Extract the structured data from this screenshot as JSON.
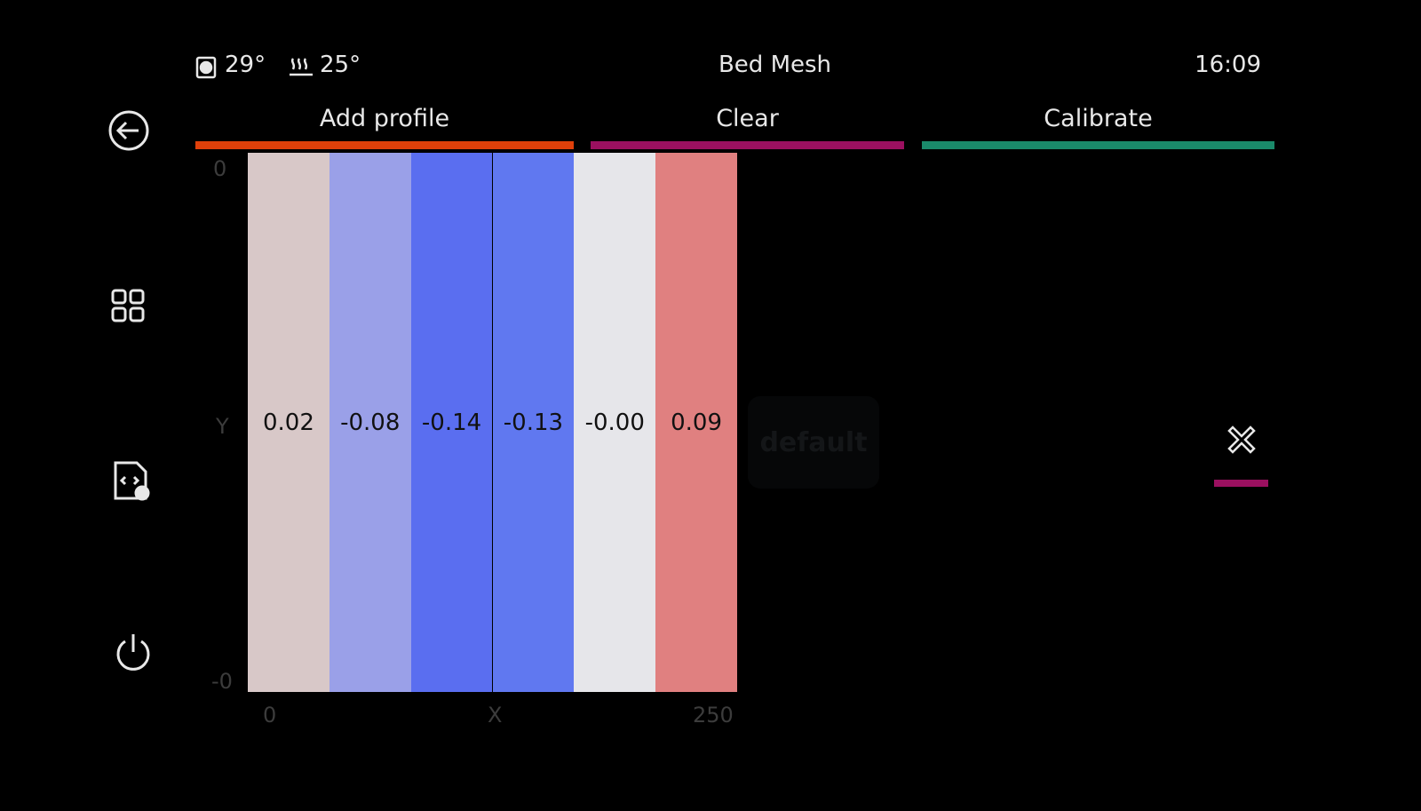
{
  "header": {
    "extruder_temp": "29°",
    "bed_temp": "25°",
    "title": "Bed Mesh",
    "time": "16:09"
  },
  "toolbar": [
    {
      "label": "Add profile",
      "color": "#e0400a"
    },
    {
      "label": "Clear",
      "color": "#9b1060"
    },
    {
      "label": "Calibrate",
      "color": "#1a8a6a"
    }
  ],
  "mesh": {
    "y_top": "0",
    "y_label": "Y",
    "y_bottom": "-0",
    "x_left": "0",
    "x_label": "X",
    "x_right": "250",
    "cells": [
      {
        "label": "0.02",
        "color": "#d8c8c8"
      },
      {
        "label": "-0.08",
        "color": "#9aa0e8"
      },
      {
        "label": "-0.14",
        "color": "#5a6ef0"
      },
      {
        "label": "-0.13",
        "color": "#6078f0"
      },
      {
        "label": "-0.00",
        "color": "#e6e6ea"
      },
      {
        "label": "0.09",
        "color": "#e08080"
      }
    ]
  },
  "profile": {
    "name": "default"
  }
}
